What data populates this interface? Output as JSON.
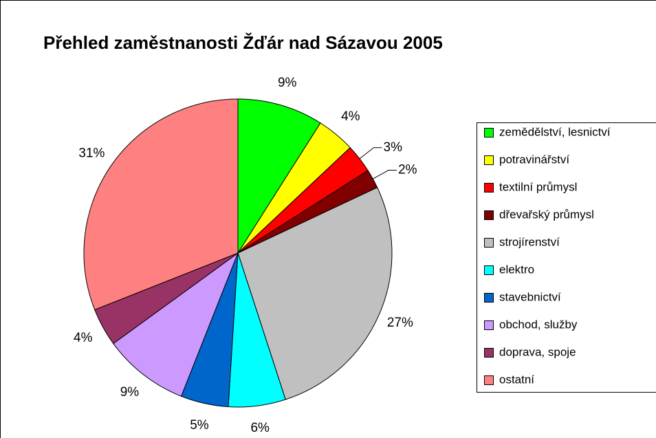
{
  "chart_data": {
    "type": "pie",
    "title": "Přehled zaměstnanosti Žďár nad Sázavou 2005",
    "categories": [
      "zemědělství, lesnictví",
      "potravinářství",
      "textilní průmysl",
      "dřevařský průmysl",
      "strojírenství",
      "elektro",
      "stavebnictví",
      "obchod, služby",
      "doprava, spoje",
      "ostatní"
    ],
    "values": [
      9,
      4,
      3,
      2,
      27,
      6,
      5,
      9,
      4,
      31
    ],
    "value_labels": [
      "9%",
      "4%",
      "3%",
      "2%",
      "27%",
      "6%",
      "5%",
      "9%",
      "4%",
      "31%"
    ],
    "colors": [
      "#00ff00",
      "#ffff00",
      "#ff0000",
      "#800000",
      "#c0c0c0",
      "#00ffff",
      "#0066cc",
      "#cc99ff",
      "#993366",
      "#ff8080"
    ],
    "legend": "right"
  }
}
